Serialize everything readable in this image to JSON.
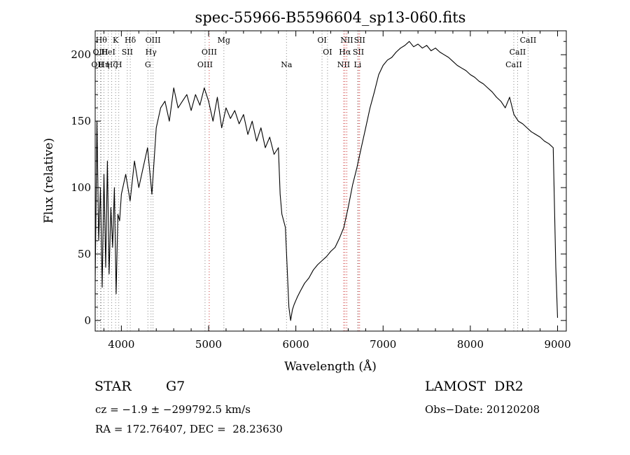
{
  "chart_data": {
    "type": "line",
    "title": "spec-55966-B5596604_sp13-060.fits",
    "xlabel": "Wavelength (Å)",
    "ylabel": "Flux (relative)",
    "xlim": [
      3700,
      9100
    ],
    "ylim": [
      -8,
      218
    ],
    "xticks": [
      4000,
      5000,
      6000,
      7000,
      8000,
      9000
    ],
    "yticks": [
      0,
      50,
      100,
      150,
      200
    ],
    "grid": false,
    "legend": "none",
    "series": [
      {
        "color": "#000000",
        "x": [
          3700,
          3720,
          3740,
          3760,
          3780,
          3800,
          3820,
          3840,
          3860,
          3880,
          3900,
          3920,
          3940,
          3960,
          3980,
          4000,
          4050,
          4100,
          4150,
          4200,
          4250,
          4300,
          4350,
          4400,
          4450,
          4500,
          4550,
          4600,
          4650,
          4700,
          4750,
          4800,
          4850,
          4900,
          4950,
          5000,
          5050,
          5100,
          5150,
          5200,
          5250,
          5300,
          5350,
          5400,
          5450,
          5500,
          5550,
          5600,
          5650,
          5700,
          5750,
          5800,
          5820,
          5840,
          5860,
          5880,
          5900,
          5920,
          5940,
          5960,
          5980,
          6000,
          6020,
          6050,
          6100,
          6150,
          6200,
          6250,
          6300,
          6350,
          6400,
          6450,
          6500,
          6550,
          6600,
          6650,
          6700,
          6750,
          6800,
          6850,
          6900,
          6950,
          7000,
          7050,
          7100,
          7150,
          7200,
          7250,
          7300,
          7350,
          7400,
          7450,
          7500,
          7550,
          7600,
          7650,
          7700,
          7750,
          7800,
          7850,
          7900,
          7950,
          8000,
          8050,
          8100,
          8150,
          8200,
          8250,
          8300,
          8350,
          8400,
          8450,
          8500,
          8550,
          8600,
          8650,
          8700,
          8750,
          8800,
          8850,
          8900,
          8950,
          8980,
          9000
        ],
        "y": [
          30,
          150,
          60,
          100,
          25,
          110,
          40,
          120,
          35,
          85,
          55,
          100,
          20,
          80,
          75,
          95,
          110,
          90,
          120,
          100,
          115,
          130,
          95,
          145,
          160,
          165,
          150,
          175,
          160,
          165,
          170,
          158,
          170,
          162,
          175,
          165,
          150,
          168,
          145,
          160,
          152,
          158,
          148,
          155,
          140,
          150,
          135,
          145,
          130,
          138,
          125,
          130,
          95,
          80,
          75,
          70,
          40,
          10,
          0,
          8,
          12,
          15,
          18,
          22,
          28,
          32,
          38,
          42,
          45,
          48,
          52,
          55,
          62,
          70,
          85,
          102,
          115,
          130,
          145,
          160,
          172,
          185,
          192,
          196,
          198,
          202,
          205,
          207,
          210,
          206,
          208,
          205,
          207,
          203,
          205,
          202,
          200,
          198,
          195,
          192,
          190,
          188,
          185,
          183,
          180,
          178,
          175,
          172,
          168,
          165,
          160,
          168,
          155,
          150,
          148,
          145,
          142,
          140,
          138,
          135,
          133,
          130,
          40,
          2
        ]
      }
    ],
    "line_markers": [
      {
        "wavelength": 3726,
        "labels": [
          "OII"
        ],
        "row": 2,
        "color": "#888888"
      },
      {
        "wavelength": 3760,
        "labels": [
          "OIII"
        ],
        "row": 1,
        "color": "#888888"
      },
      {
        "wavelength": 3770,
        "labels": [
          "Hθ"
        ],
        "row": 0,
        "color": "#888888"
      },
      {
        "wavelength": 3800,
        "labels": [
          "Hη"
        ],
        "row": 2,
        "color": "#888888"
      },
      {
        "wavelength": 3850,
        "labels": [
          "HeI"
        ],
        "row": 1,
        "color": "#888888"
      },
      {
        "wavelength": 3889,
        "labels": [
          "Hζ"
        ],
        "row": 2,
        "color": "#888888"
      },
      {
        "wavelength": 3934,
        "labels": [
          "K"
        ],
        "row": 0,
        "color": "#888888"
      },
      {
        "wavelength": 3970,
        "labels": [
          "H"
        ],
        "row": 2,
        "color": "#888888"
      },
      {
        "wavelength": 4068,
        "labels": [
          "SII"
        ],
        "row": 1,
        "color": "#888888"
      },
      {
        "wavelength": 4102,
        "labels": [
          "Hδ"
        ],
        "row": 0,
        "color": "#888888"
      },
      {
        "wavelength": 4304,
        "labels": [
          "G"
        ],
        "row": 2,
        "color": "#888888"
      },
      {
        "wavelength": 4340,
        "labels": [
          "Hγ"
        ],
        "row": 1,
        "color": "#888888"
      },
      {
        "wavelength": 4363,
        "labels": [
          "OIII"
        ],
        "row": 0,
        "color": "#888888"
      },
      {
        "wavelength": 4959,
        "labels": [
          "OIII"
        ],
        "row": 2,
        "color": "#888888"
      },
      {
        "wavelength": 5007,
        "labels": [
          "OIII"
        ],
        "row": 1,
        "color": "#cc3333"
      },
      {
        "wavelength": 5175,
        "labels": [
          "Mg"
        ],
        "row": 0,
        "color": "#888888"
      },
      {
        "wavelength": 5893,
        "labels": [
          "Na"
        ],
        "row": 2,
        "color": "#888888"
      },
      {
        "wavelength": 6300,
        "labels": [
          "OI"
        ],
        "row": 0,
        "color": "#888888"
      },
      {
        "wavelength": 6363,
        "labels": [
          "OI"
        ],
        "row": 1,
        "color": "#888888"
      },
      {
        "wavelength": 6548,
        "labels": [
          "NII"
        ],
        "row": 2,
        "color": "#cc3333"
      },
      {
        "wavelength": 6563,
        "labels": [
          "Hα"
        ],
        "row": 1,
        "color": "#cc3333"
      },
      {
        "wavelength": 6584,
        "labels": [
          "NII"
        ],
        "row": 0,
        "color": "#cc3333"
      },
      {
        "wavelength": 6708,
        "labels": [
          "Li"
        ],
        "row": 2,
        "color": "#888888"
      },
      {
        "wavelength": 6717,
        "labels": [
          "SII"
        ],
        "row": 1,
        "color": "#cc3333"
      },
      {
        "wavelength": 6731,
        "labels": [
          "SII"
        ],
        "row": 0,
        "color": "#cc3333"
      },
      {
        "wavelength": 8498,
        "labels": [
          "CaII"
        ],
        "row": 2,
        "color": "#888888"
      },
      {
        "wavelength": 8542,
        "labels": [
          "CaII"
        ],
        "row": 1,
        "color": "#888888"
      },
      {
        "wavelength": 8662,
        "labels": [
          "CaII"
        ],
        "row": 0,
        "color": "#888888"
      }
    ]
  },
  "info": {
    "object_class": "STAR",
    "subclass": "G7",
    "survey": "LAMOST  DR2",
    "cz": "cz = −1.9 ± −299792.5 km/s",
    "obs_date": "Obs−Date: 20120208",
    "coords": "RA = 172.76407, DEC =  28.23630"
  }
}
